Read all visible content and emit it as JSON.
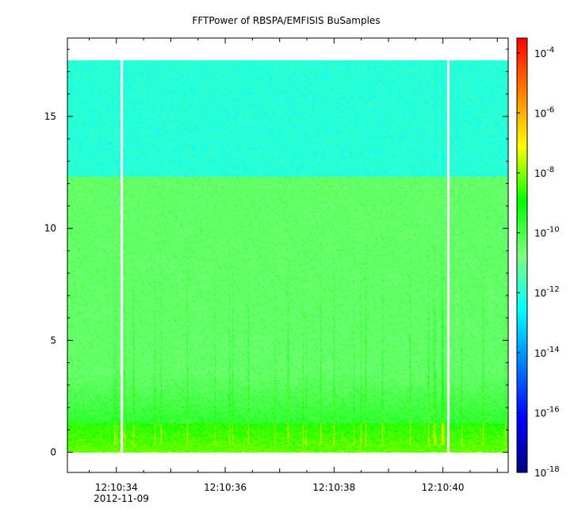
{
  "chart_data": {
    "type": "heatmap",
    "title": "FFTPower of RBSPA/EMFISIS  BuSamples",
    "xlabel": "",
    "ylabel": "",
    "x_ticks": [
      "12:10:34",
      "12:10:36",
      "12:10:38",
      "12:10:40"
    ],
    "x_date_label": "2012-11-09",
    "x_range_seconds": [
      33.1,
      41.2
    ],
    "y_ticks": [
      {
        "value": 0,
        "label": "0"
      },
      {
        "value": 5,
        "label": "5"
      },
      {
        "value": 10,
        "label": "10"
      },
      {
        "value": 15,
        "label": "15"
      }
    ],
    "y_range": [
      -0.9,
      18.5
    ],
    "data_y_range": [
      0,
      17.5
    ],
    "data_gaps_seconds": [
      34.1,
      40.1
    ],
    "colorbar": {
      "scale": "log",
      "range_exponent": [
        -18,
        -3.5
      ],
      "colors": [
        "#00007f",
        "#0000ff",
        "#007fff",
        "#00ffff",
        "#7fff7f",
        "#00ff00",
        "#ffff00",
        "#ff7f00",
        "#ff0000"
      ],
      "ticks": [
        {
          "exp": -4,
          "base": "10",
          "sup": "-4"
        },
        {
          "exp": -6,
          "base": "10",
          "sup": "-6"
        },
        {
          "exp": -8,
          "base": "10",
          "sup": "-8"
        },
        {
          "exp": -10,
          "base": "10",
          "sup": "-10"
        },
        {
          "exp": -12,
          "base": "10",
          "sup": "-12"
        },
        {
          "exp": -14,
          "base": "10",
          "sup": "-14"
        },
        {
          "exp": -16,
          "base": "10",
          "sup": "-16"
        },
        {
          "exp": -18,
          "base": "10",
          "sup": "-18"
        }
      ]
    },
    "bands": [
      {
        "y_from": 12.3,
        "y_to": 17.5,
        "log_power": -12.0
      },
      {
        "y_from": 1.3,
        "y_to": 12.3,
        "log_power": -10.4
      },
      {
        "y_from": 0,
        "y_to": 1.3,
        "log_power": -8.2
      }
    ]
  }
}
